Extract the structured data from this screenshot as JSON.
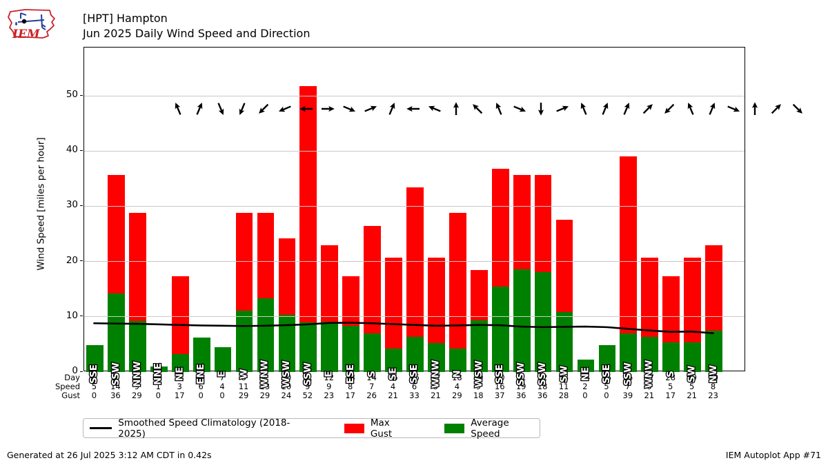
{
  "header": {
    "title_line1": "[HPT] Hampton",
    "title_line2": "Jun 2025 Daily Wind Speed and Direction",
    "logo_text": "IEM"
  },
  "footer": {
    "generated": "Generated at 26 Jul 2025 3:12 AM CDT in 0.42s",
    "app": "IEM Autoplot App #71"
  },
  "chart_data": {
    "type": "bar",
    "title": "[HPT] Hampton — Jun 2025 Daily Wind Speed and Direction",
    "ylabel": "Wind Speed [miles per hour]",
    "ylim": [
      0,
      58.75
    ],
    "yticks": [
      0,
      10,
      20,
      30,
      40,
      50
    ],
    "grid": "horizontal",
    "legend_position": "bottom",
    "legend": [
      "Smoothed Speed Climatology (2018-2025)",
      "Max Gust",
      "Average Speed"
    ],
    "colors": {
      "max_gust": "#ff0000",
      "avg_speed": "#008000",
      "climatology": "#000000",
      "gridline": "#c9c9c9"
    },
    "days": [
      1,
      2,
      3,
      4,
      5,
      6,
      7,
      8,
      9,
      10,
      11,
      12,
      13,
      14,
      15,
      16,
      17,
      18,
      19,
      20,
      21,
      22,
      23,
      24,
      25,
      26,
      27,
      28,
      29,
      30
    ],
    "directions": [
      "SSE",
      "SSW",
      "NNW",
      "NNE",
      "NE",
      "ENE",
      "E",
      "W",
      "WNW",
      "WSW",
      "SSW",
      "E",
      "ESE",
      "S",
      "SE",
      "SSE",
      "WNW",
      "N",
      "WSW",
      "SSE",
      "SSW",
      "SSW",
      "SW",
      "NE",
      "SSE",
      "SSW",
      "WNW",
      "S",
      "SW",
      "NW"
    ],
    "series": [
      {
        "name": "Max Gust",
        "type": "bar",
        "color": "#ff0000",
        "values": [
          0,
          35.7,
          28.8,
          0,
          17.3,
          0,
          0,
          28.8,
          28.8,
          24.2,
          51.8,
          23.0,
          17.3,
          26.5,
          20.7,
          33.4,
          20.7,
          28.8,
          18.4,
          36.8,
          35.7,
          35.7,
          27.6,
          0,
          0,
          39.1,
          20.7,
          17.3,
          20.7,
          23.0
        ]
      },
      {
        "name": "Average Speed",
        "type": "bar",
        "color": "#008000",
        "values": [
          4.9,
          14.2,
          9.2,
          1.0,
          3.3,
          6.2,
          4.5,
          11.1,
          13.3,
          10.3,
          9.0,
          9.1,
          8.4,
          7.0,
          4.2,
          6.4,
          5.2,
          4.2,
          9.4,
          15.5,
          18.6,
          18.1,
          10.8,
          2.2,
          4.9,
          7.0,
          6.4,
          5.4,
          5.4,
          7.5
        ]
      },
      {
        "name": "Smoothed Speed Climatology (2018-2025)",
        "type": "line",
        "color": "#000000",
        "values": [
          8.7,
          8.65,
          8.6,
          8.5,
          8.4,
          8.3,
          8.25,
          8.2,
          8.25,
          8.35,
          8.5,
          8.75,
          8.8,
          8.7,
          8.55,
          8.4,
          8.25,
          8.3,
          8.4,
          8.35,
          8.1,
          8.0,
          8.05,
          8.1,
          8.0,
          7.7,
          7.4,
          7.15,
          7.2,
          6.9
        ]
      }
    ],
    "table": {
      "row_labels": [
        "Day",
        "Speed",
        "Gust"
      ],
      "day": [
        1,
        2,
        3,
        4,
        5,
        6,
        7,
        8,
        9,
        10,
        11,
        12,
        13,
        14,
        15,
        16,
        17,
        18,
        19,
        20,
        21,
        22,
        23,
        24,
        25,
        26,
        27,
        28,
        29,
        30
      ],
      "speed": [
        5,
        14,
        9,
        1,
        3,
        6,
        4,
        11,
        13,
        10,
        9,
        9,
        8,
        7,
        4,
        6,
        5,
        4,
        9,
        16,
        19,
        18,
        11,
        2,
        5,
        7,
        6,
        5,
        5,
        8
      ],
      "gust": [
        0,
        36,
        29,
        0,
        17,
        0,
        0,
        29,
        29,
        24,
        52,
        23,
        17,
        26,
        21,
        33,
        21,
        29,
        18,
        37,
        36,
        36,
        28,
        0,
        0,
        39,
        21,
        17,
        21,
        23
      ]
    }
  }
}
